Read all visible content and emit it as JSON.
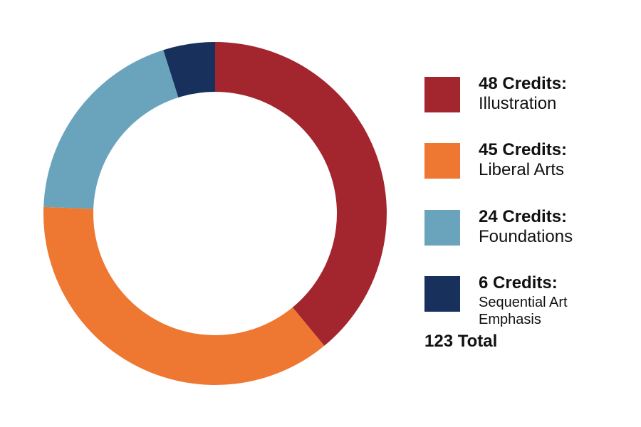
{
  "chart_data": {
    "type": "pie",
    "donut": true,
    "categories": [
      "Illustration",
      "Liberal Arts",
      "Foundations",
      "Sequential Art Emphasis"
    ],
    "values": [
      48,
      45,
      24,
      6
    ],
    "colors": [
      "#a3262f",
      "#ee7732",
      "#6aa4bc",
      "#17305c"
    ],
    "legend_position": "right",
    "legend": [
      {
        "credits": "48 Credits:",
        "name": "Illustration"
      },
      {
        "credits": "45 Credits:",
        "name": "Liberal Arts"
      },
      {
        "credits": "24 Credits:",
        "name": "Foundations"
      },
      {
        "credits": "6 Credits:",
        "name_line1": "Sequential Art",
        "name_line2": "Emphasis"
      }
    ],
    "total_label": "123 Total"
  }
}
